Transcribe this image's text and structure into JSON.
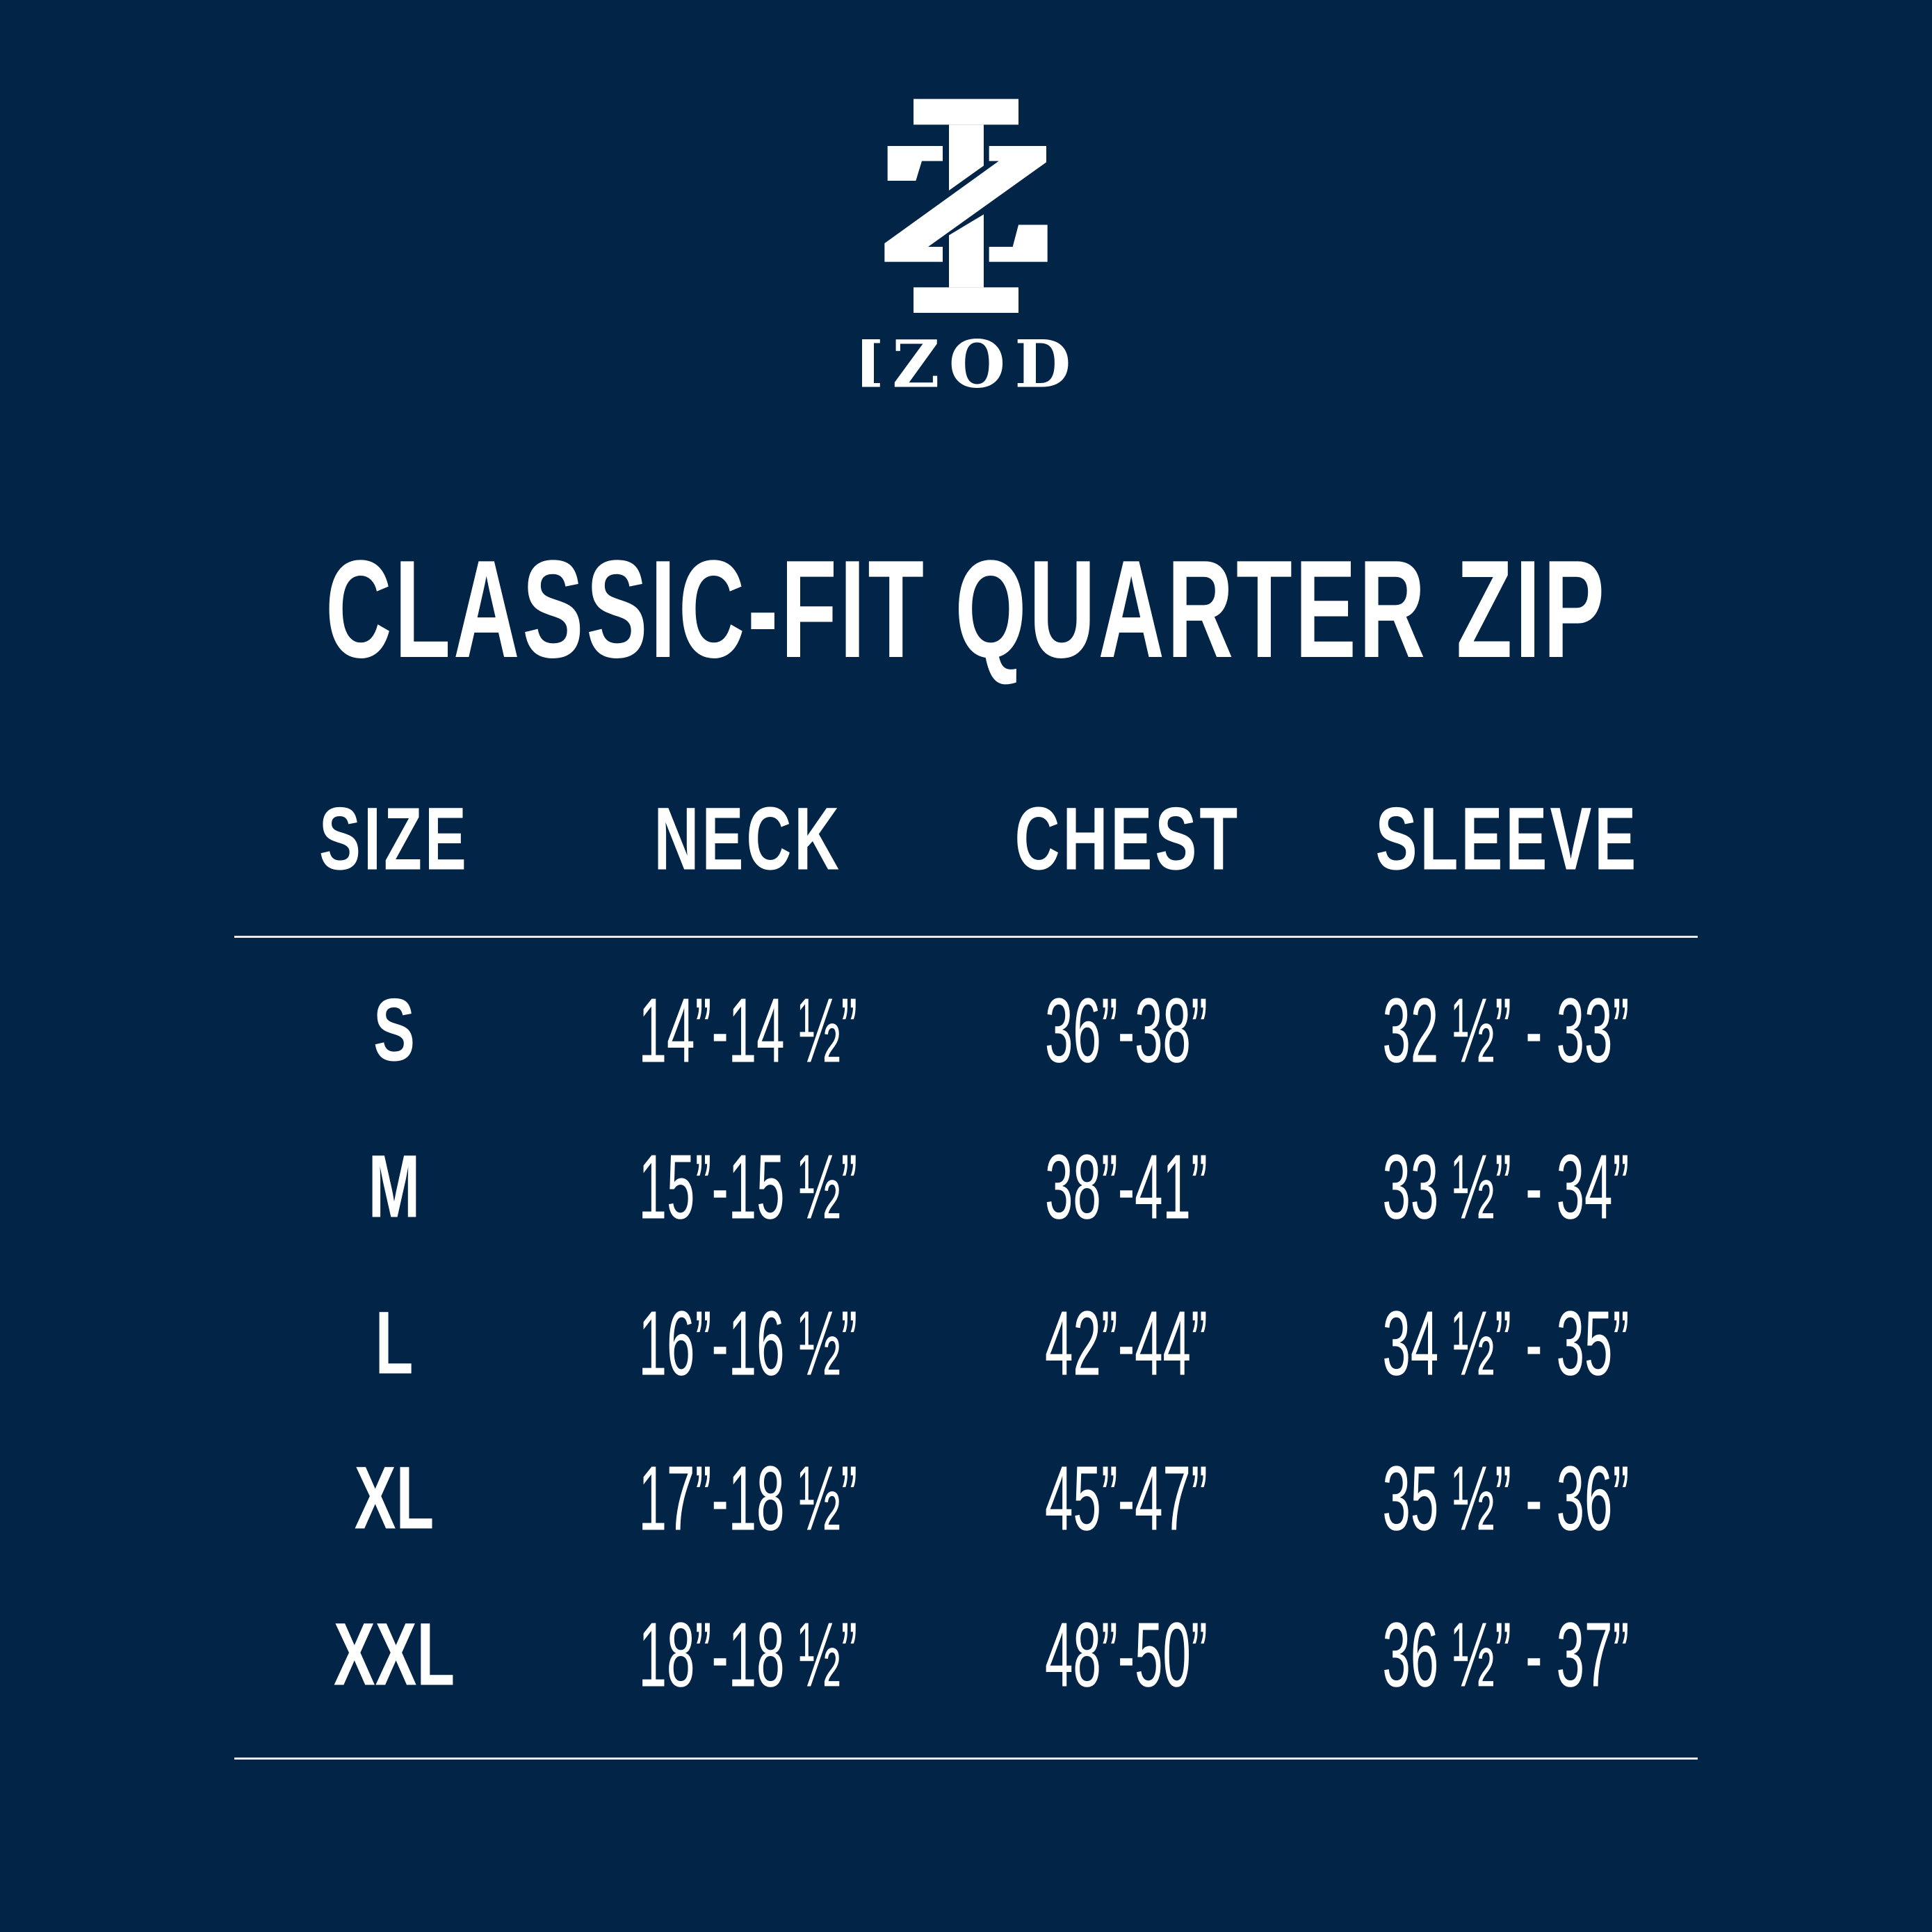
{
  "brand": {
    "name": "IZOD",
    "logo": "izod-monogram-logo"
  },
  "title": "CLASSIC-FIT QUARTER ZIP",
  "colors": {
    "background": "#022447",
    "text": "#ffffff"
  },
  "table": {
    "headers": [
      "SIZE",
      "NECK",
      "CHEST",
      "SLEEVE"
    ],
    "rows": [
      [
        "S",
        "14”-14 ½”",
        "36”-38”",
        "32 ½” - 33”"
      ],
      [
        "M",
        "15”-15 ½”",
        "38”-41”",
        "33 ½” - 34”"
      ],
      [
        "L",
        "16”-16 ½”",
        "42”-44”",
        "34 ½” - 35”"
      ],
      [
        "XL",
        "17”-18 ½”",
        "45”-47”",
        "35 ½” - 36”"
      ],
      [
        "XXL",
        "18”-18 ½”",
        "48”-50”",
        "36 ½” - 37”"
      ]
    ]
  }
}
